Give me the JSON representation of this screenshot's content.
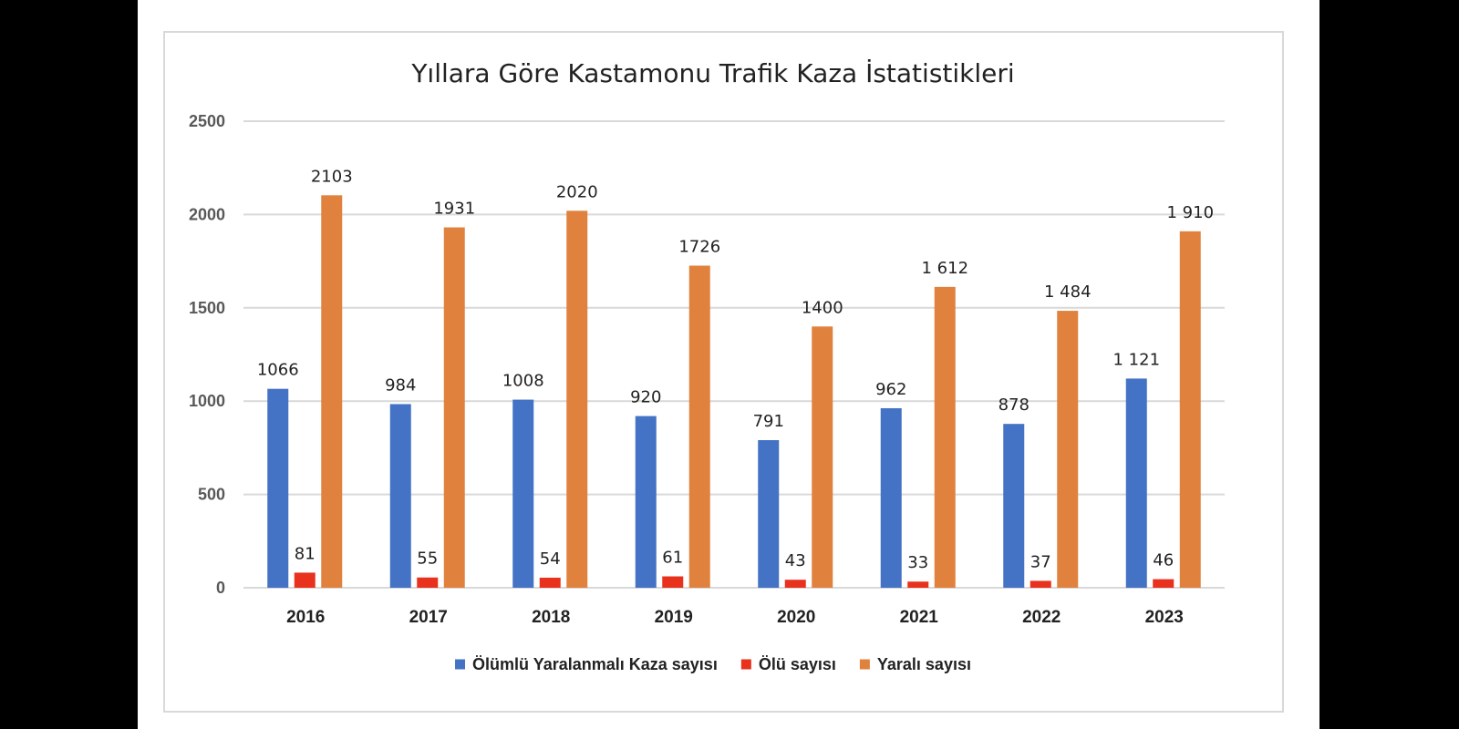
{
  "chart_data": {
    "type": "bar",
    "title": "Yıllara Göre Kastamonu Trafik Kaza İstatistikleri",
    "categories": [
      "2016",
      "2017",
      "2018",
      "2019",
      "2020",
      "2021",
      "2022",
      "2023"
    ],
    "series": [
      {
        "name": "Ölümlü Yaralanmalı Kaza sayısı",
        "color": "#4472c4",
        "values": [
          1066,
          984,
          1008,
          920,
          791,
          962,
          878,
          1121
        ],
        "labels": [
          "1066",
          "984",
          "1008",
          "920",
          "791",
          "962",
          "878",
          "1 121"
        ]
      },
      {
        "name": "Ölü sayısı",
        "color": "#e8321e",
        "values": [
          81,
          55,
          54,
          61,
          43,
          33,
          37,
          46
        ],
        "labels": [
          "81",
          "55",
          "54",
          "61",
          "43",
          "33",
          "37",
          "46"
        ]
      },
      {
        "name": "Yaralı sayısı",
        "color": "#e0823e",
        "values": [
          2103,
          1931,
          2020,
          1726,
          1400,
          1612,
          1484,
          1910
        ],
        "labels": [
          "2103",
          "1931",
          "2020",
          "1726",
          "1400",
          "1 612",
          "1 484",
          "1 910"
        ]
      }
    ],
    "ylim": [
      0,
      2500
    ],
    "yticks": [
      0,
      500,
      1000,
      1500,
      2000,
      2500
    ],
    "xlabel": "",
    "ylabel": "",
    "grid": true,
    "legend_position": "bottom"
  }
}
